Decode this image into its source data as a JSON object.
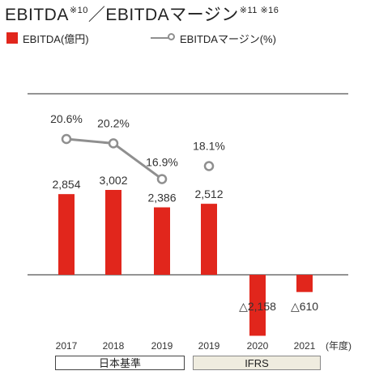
{
  "title": "EBITDA",
  "title_note_1": "※10",
  "title_sep": "／",
  "title_2": "EBITDAマージン",
  "title_note_2": "※11 ※16",
  "colors": {
    "bar": "#e1261c",
    "line": "#8f8f8f",
    "rule": "#555555",
    "ifrs_bg": "#efecdf"
  },
  "legend": {
    "bar_label": "EBITDA(億円)",
    "line_label": "EBITDAマージン(%)"
  },
  "unit_label": "(年度)",
  "standards": {
    "jgaap": "日本基準",
    "ifrs": "IFRS"
  },
  "chart_data": {
    "type": "bar",
    "categories": [
      "2017",
      "2018",
      "2019",
      "2019",
      "2020",
      "2021"
    ],
    "series": [
      {
        "name": "EBITDA(億円)",
        "values": [
          2854,
          3002,
          2386,
          2512,
          -2158,
          -610
        ],
        "labels": [
          "2,854",
          "3,002",
          "2,386",
          "2,512",
          "△2,158",
          "△610"
        ]
      },
      {
        "name": "EBITDAマージン(%)",
        "type": "line",
        "values": [
          20.6,
          20.2,
          16.9,
          18.1,
          null,
          null
        ],
        "labels": [
          "20.6%",
          "20.2%",
          "16.9%",
          "18.1%",
          "",
          ""
        ]
      }
    ],
    "groups": [
      {
        "label": "日本基準",
        "categories": [
          0,
          1,
          2
        ]
      },
      {
        "label": "IFRS",
        "categories": [
          3,
          4,
          5
        ]
      }
    ],
    "xlabel": "(年度)",
    "ylabel": ""
  }
}
